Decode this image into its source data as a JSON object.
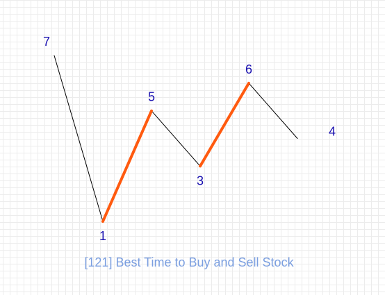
{
  "caption": "[121] Best Time to Buy and Sell Stock",
  "colors": {
    "label": "#1a11b0",
    "line": "#000000",
    "highlight": "#ff5a0f",
    "caption": "#7b9fe0"
  },
  "prices": [
    {
      "value": 7,
      "label": "7"
    },
    {
      "value": 1,
      "label": "1"
    },
    {
      "value": 5,
      "label": "5"
    },
    {
      "value": 3,
      "label": "3"
    },
    {
      "value": 6,
      "label": "6"
    },
    {
      "value": 4,
      "label": "4"
    }
  ],
  "highlighted_segments": [
    [
      1,
      2
    ],
    [
      3,
      4
    ]
  ]
}
